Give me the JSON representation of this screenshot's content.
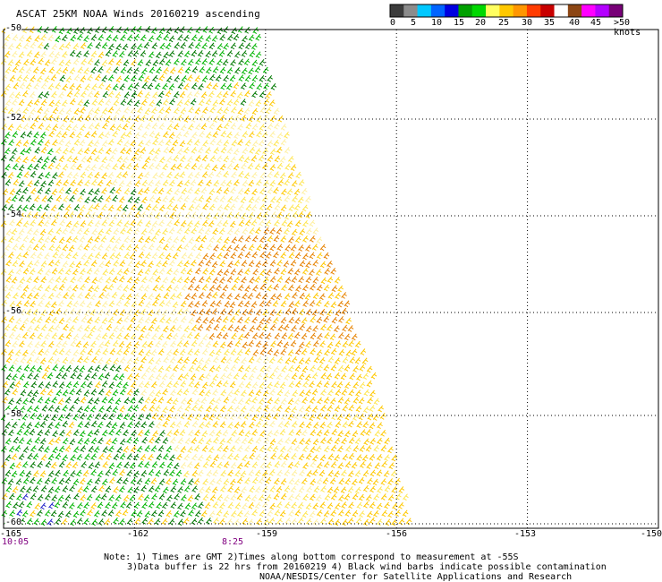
{
  "title": "ASCAT 25KM NOAA Winds 20160219 ascending",
  "legend": {
    "colors": [
      "#3c3c3c",
      "#8c8c8c",
      "#00c8ff",
      "#0064ff",
      "#0000e0",
      "#00a000",
      "#00d800",
      "#ffff60",
      "#ffc800",
      "#ff9600",
      "#ff3c00",
      "#c80000",
      "#ffffff",
      "#8c4614",
      "#ff00ff",
      "#b400ff",
      "#780078"
    ],
    "labels": [
      "0",
      "5",
      "10",
      "15",
      "20",
      "25",
      "30",
      "35",
      "40",
      "45",
      ">50 knots"
    ]
  },
  "map": {
    "lat_labels": [
      "-50",
      "-52",
      "-54",
      "-56",
      "-58",
      "-60"
    ],
    "lat_values": [
      -50,
      -52,
      -54,
      -56,
      -58,
      -60
    ],
    "lon_labels": [
      "-165",
      "-162",
      "-159",
      "-156",
      "-153",
      "-150"
    ],
    "lon_values": [
      -165,
      -162,
      -159,
      -156,
      -153,
      -150
    ],
    "times": [
      "10:05",
      "8:25"
    ],
    "barb_colors": {
      "green_dark": "#007800",
      "green": "#00b400",
      "yellow_light": "#fff0a0",
      "yellow": "#ffe650",
      "yellow_orange": "#ffc800",
      "orange": "#e68200",
      "blue": "#1e1ec8"
    }
  },
  "notes": {
    "line1": "Note: 1) Times are GMT 2)Times along bottom correspond to measurement at -55S",
    "line2": "3)Data buffer is 22 hrs from 20160219 4) Black wind barbs indicate possible contamination",
    "line3": "NOAA/NESDIS/Center for Satellite Applications and Research"
  }
}
